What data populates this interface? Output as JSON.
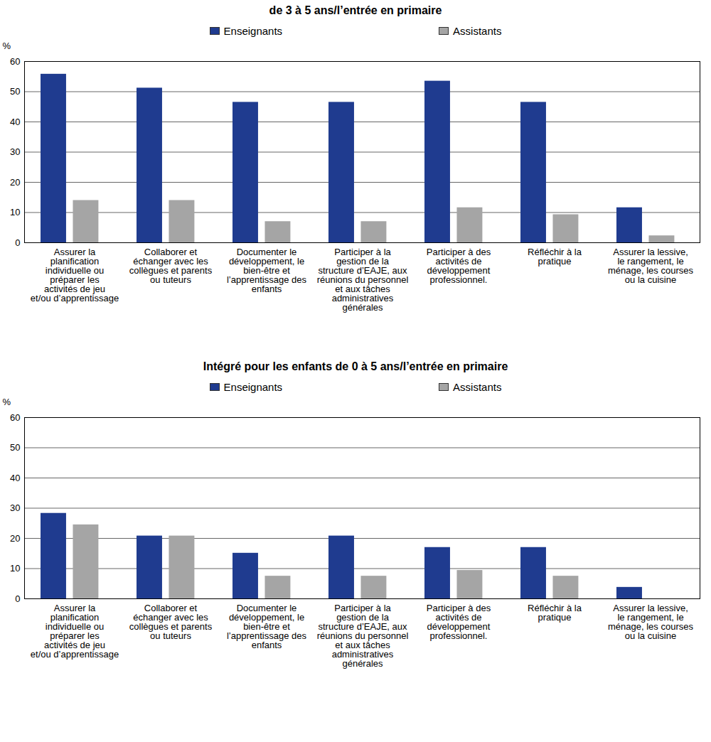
{
  "chart_data": [
    {
      "type": "bar",
      "title": "de 3 à 5 ans/l’entrée en primaire",
      "y_label": "%",
      "categories": [
        "Assurer la planification individuelle ou préparer les activités de jeu et/ou d’apprentissage",
        "Collaborer et échanger avec les collègues et parents ou tuteurs",
        "Documenter le développement, le bien-être et l’apprentissage des enfants",
        "Participer à la gestion de la structure d’EAJE, aux réunions du personnel et aux tâches administratives générales",
        "Participer à des activités de développement professionnel.",
        "Réfléchir à la pratique",
        "Assurer la lessive, le rangement, le ménage, les courses ou la cuisine"
      ],
      "series": [
        {
          "name": "Enseignants",
          "color": "#1f3b8f",
          "values": [
            55.8,
            51.2,
            46.5,
            46.5,
            53.5,
            46.5,
            11.6
          ]
        },
        {
          "name": "Assistants",
          "color": "#a5a5a5",
          "values": [
            14,
            14,
            7,
            7,
            11.6,
            9.3,
            2.3
          ]
        }
      ],
      "ylim": [
        0,
        60
      ],
      "yticks": [
        0,
        10,
        20,
        30,
        40,
        50,
        60
      ],
      "grid": true,
      "legend": "top"
    },
    {
      "type": "bar",
      "title": "Intégré pour les enfants de 0 à 5 ans/l’entrée en primaire",
      "y_label": "%",
      "categories": [
        "Assurer la planification individuelle ou préparer les activités de jeu et/ou d’apprentissage",
        "Collaborer et échanger avec les collègues et parents ou tuteurs",
        "Documenter le développement, le bien-être et l’apprentissage des enfants",
        "Participer à la gestion de la structure d’EAJE, aux réunions du personnel et aux tâches administratives générales",
        "Participer à des activités de développement professionnel.",
        "Réfléchir à la pratique",
        "Assurer la lessive, le rangement, le ménage, les courses ou la cuisine"
      ],
      "series": [
        {
          "name": "Enseignants",
          "color": "#1f3b8f",
          "values": [
            28.3,
            20.8,
            15.1,
            20.8,
            17,
            17,
            3.8
          ]
        },
        {
          "name": "Assistants",
          "color": "#a5a5a5",
          "values": [
            24.5,
            20.8,
            7.5,
            7.5,
            9.4,
            7.5,
            0
          ]
        }
      ],
      "ylim": [
        0,
        60
      ],
      "yticks": [
        0,
        10,
        20,
        30,
        40,
        50,
        60
      ],
      "grid": true,
      "legend": "top"
    }
  ]
}
